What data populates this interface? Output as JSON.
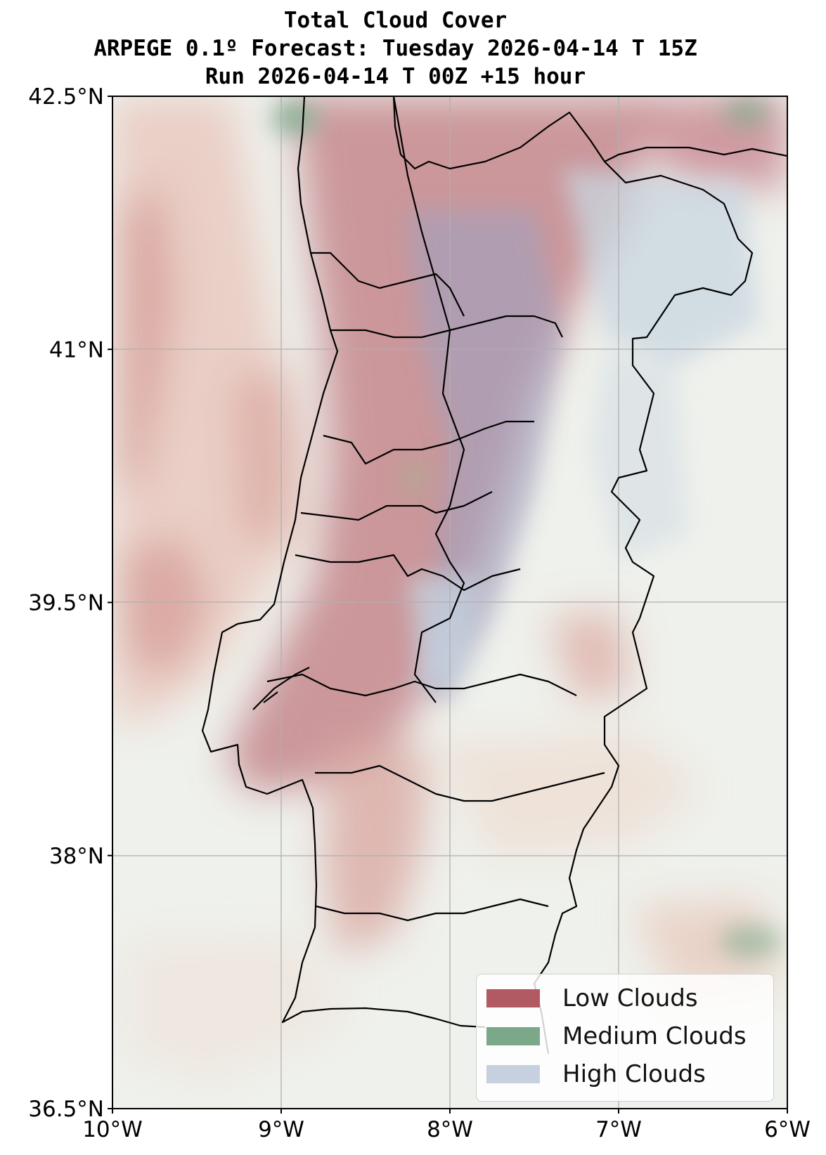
{
  "figure": {
    "title_lines": [
      "Total Cloud Cover",
      "ARPEGE 0.1º Forecast: Tuesday 2026-04-14 T 15Z",
      "Run 2026-04-14 T 00Z +15 hour"
    ]
  },
  "map": {
    "region": "Portugal",
    "extent_lon": [
      -10,
      -6
    ],
    "extent_lat": [
      36.5,
      42.5
    ],
    "lon_ticks": [
      {
        "value": -10,
        "label": "10°W"
      },
      {
        "value": -9,
        "label": "9°W"
      },
      {
        "value": -8,
        "label": "8°W"
      },
      {
        "value": -7,
        "label": "7°W"
      },
      {
        "value": -6,
        "label": "6°W"
      }
    ],
    "lat_ticks": [
      {
        "value": 42.5,
        "label": "42.5°N"
      },
      {
        "value": 41,
        "label": "41°N"
      },
      {
        "value": 39.5,
        "label": "39.5°N"
      },
      {
        "value": 38,
        "label": "38°N"
      },
      {
        "value": 36.5,
        "label": "36.5°N"
      }
    ],
    "gridlines": true,
    "colors": {
      "background": "#eff1ec",
      "low": "#b15a64",
      "medium": "#7aa889",
      "high": "#c6d0df",
      "borders": "#000000",
      "grid": "#b0b0b0"
    }
  },
  "legend": {
    "position": "lower-right",
    "items": [
      {
        "label": "Low Clouds",
        "color": "#b15a64"
      },
      {
        "label": "Medium Clouds",
        "color": "#7aa889"
      },
      {
        "label": "High Clouds",
        "color": "#c6d0df"
      }
    ]
  }
}
